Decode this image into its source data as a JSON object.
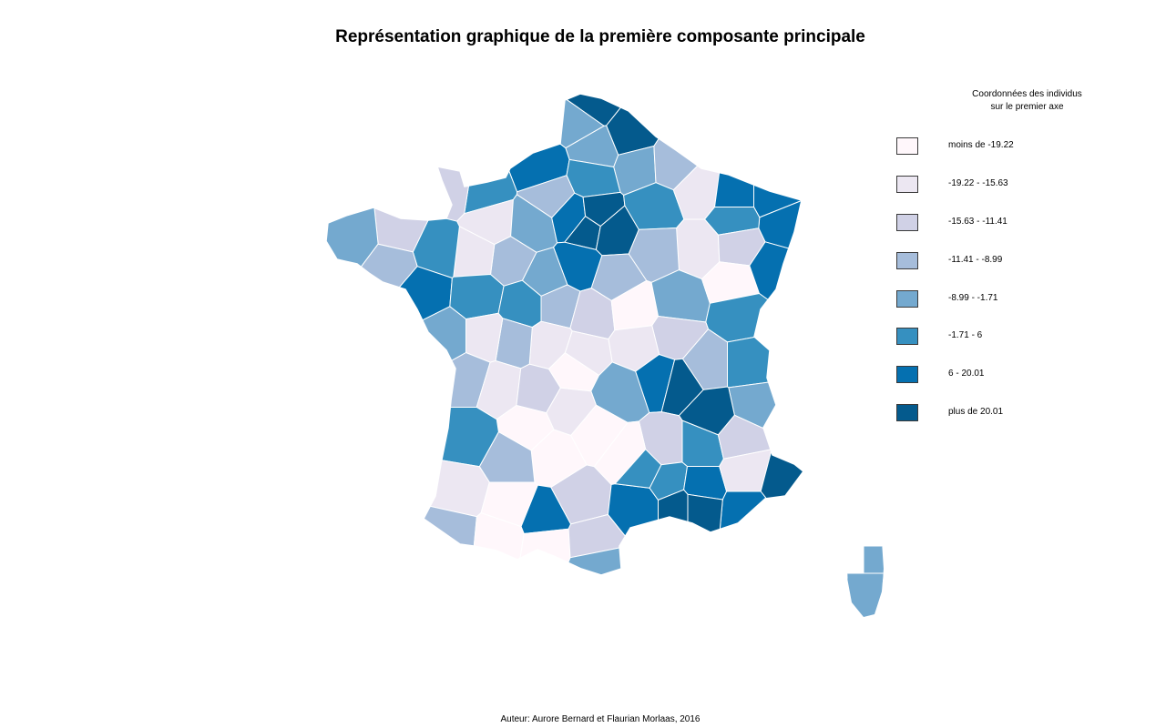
{
  "title": "Représentation graphique de la première composante principale",
  "legend": {
    "title_line1": "Coordonnées des individus",
    "title_line2": "sur le premier axe",
    "classes": [
      {
        "label": "moins de -19.22",
        "color": "#fff7fb"
      },
      {
        "label": "-19.22 - -15.63",
        "color": "#ece7f2"
      },
      {
        "label": "-15.63 - -11.41",
        "color": "#d0d1e6"
      },
      {
        "label": "-11.41 - -8.99",
        "color": "#a6bddb"
      },
      {
        "label": "-8.99 - -1.71",
        "color": "#74a9cf"
      },
      {
        "label": "-1.71 - 6",
        "color": "#3690c0"
      },
      {
        "label": "6 - 20.01",
        "color": "#0570b0"
      },
      {
        "label": "plus de 20.01",
        "color": "#045a8d"
      }
    ]
  },
  "map": {
    "border_color": "#ffffff",
    "corsica_class": 4
  },
  "footer": "Auteur: Aurore Bernard et Flaurian Morlaas, 2016"
}
